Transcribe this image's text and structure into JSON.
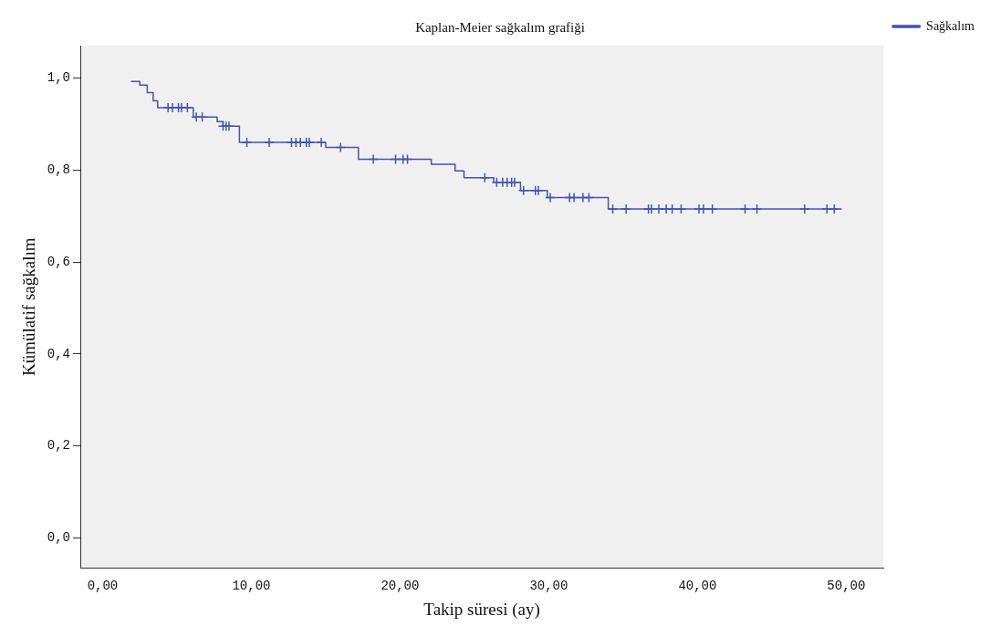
{
  "chart_data": {
    "type": "step",
    "title": "Kaplan-Meier sağkalım grafiği",
    "xlabel": "Takip süresi (ay)",
    "ylabel": "Kümülatif sağkalım",
    "xlim": [
      -1.5,
      52.5
    ],
    "ylim": [
      -0.065,
      1.07
    ],
    "xticks": [
      {
        "value": 0,
        "label": "0,00"
      },
      {
        "value": 10,
        "label": "10,00"
      },
      {
        "value": 20,
        "label": "20,00"
      },
      {
        "value": 30,
        "label": "30,00"
      },
      {
        "value": 40,
        "label": "40,00"
      },
      {
        "value": 50,
        "label": "50,00"
      }
    ],
    "yticks": [
      {
        "value": 0,
        "label": "0,0"
      },
      {
        "value": 0.2,
        "label": "0,2"
      },
      {
        "value": 0.4,
        "label": "0,4"
      },
      {
        "value": 0.6,
        "label": "0,6"
      },
      {
        "value": 0.8,
        "label": "0,8"
      },
      {
        "value": 1.0,
        "label": "1,0"
      }
    ],
    "grid": false,
    "legend": "top right",
    "series": [
      {
        "name": "Sağkalım",
        "color": "#4054b2",
        "x": [
          1.9,
          2.5,
          3.0,
          3.4,
          3.7,
          6.1,
          7.7,
          8.1,
          9.2,
          15.0,
          17.2,
          22.1,
          23.7,
          24.3,
          26.3,
          28.1,
          29.9,
          34.0,
          49.7
        ],
        "values": [
          0.992,
          0.984,
          0.968,
          0.95,
          0.935,
          0.915,
          0.905,
          0.895,
          0.86,
          0.849,
          0.823,
          0.812,
          0.798,
          0.783,
          0.773,
          0.755,
          0.74,
          0.715,
          0.715
        ]
      },
      {
        "type": "scatter",
        "marker": "cross",
        "color": "#4054b2",
        "x": [
          4.4,
          4.7,
          5.1,
          5.3,
          5.7,
          6.3,
          6.7,
          8.1,
          8.3,
          8.5,
          9.7,
          11.2,
          12.7,
          13.0,
          13.3,
          13.7,
          13.9,
          14.7,
          16.0,
          18.2,
          19.7,
          20.2,
          20.5,
          25.7,
          26.5,
          26.9,
          27.2,
          27.5,
          27.7,
          28.3,
          29.1,
          29.3,
          30.1,
          31.4,
          31.7,
          32.3,
          32.7,
          34.3,
          35.2,
          36.7,
          36.9,
          37.4,
          37.9,
          38.3,
          38.9,
          40.1,
          40.4,
          41.0,
          43.2,
          44.0,
          47.2,
          48.7,
          49.2
        ],
        "values": [
          0.935,
          0.935,
          0.935,
          0.935,
          0.935,
          0.915,
          0.915,
          0.895,
          0.895,
          0.895,
          0.86,
          0.86,
          0.86,
          0.86,
          0.86,
          0.86,
          0.86,
          0.86,
          0.849,
          0.823,
          0.823,
          0.823,
          0.823,
          0.783,
          0.773,
          0.773,
          0.773,
          0.773,
          0.773,
          0.755,
          0.755,
          0.755,
          0.74,
          0.74,
          0.74,
          0.74,
          0.74,
          0.715,
          0.715,
          0.715,
          0.715,
          0.715,
          0.715,
          0.715,
          0.715,
          0.715,
          0.715,
          0.715,
          0.715,
          0.715,
          0.715,
          0.715,
          0.715
        ]
      }
    ]
  }
}
